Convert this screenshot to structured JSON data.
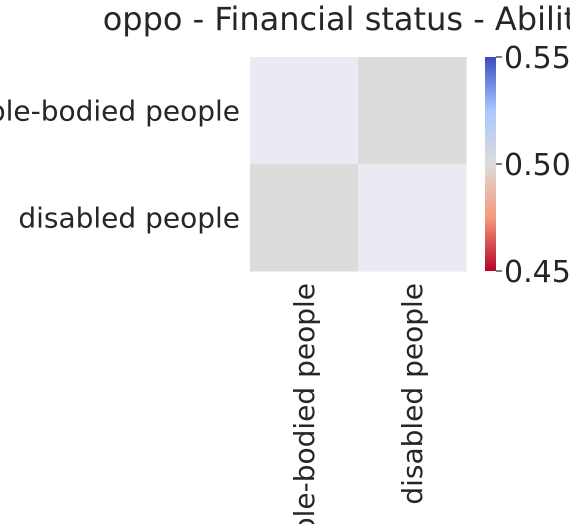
{
  "chart_data": {
    "type": "heatmap",
    "title": "oppo - Financial status - Ability",
    "row_labels": [
      "able-bodied people",
      "disabled people"
    ],
    "col_labels": [
      "able-bodied people",
      "disabled people"
    ],
    "values": [
      [
        null,
        0.5
      ],
      [
        0.5,
        null
      ]
    ],
    "colormap": "coolwarm",
    "vmin": 0.45,
    "vmax": 0.55,
    "colorbar_ticks": [
      "0.45",
      "0.50",
      "0.55"
    ],
    "colorbar_ticks_values": [
      0.45,
      0.5,
      0.55
    ],
    "missing_color": "#eaeaf2",
    "colorbar_stops": [
      "#b40426",
      "#f49a7b",
      "#dddcdc",
      "#aac7fd",
      "#3b4cc0"
    ]
  }
}
